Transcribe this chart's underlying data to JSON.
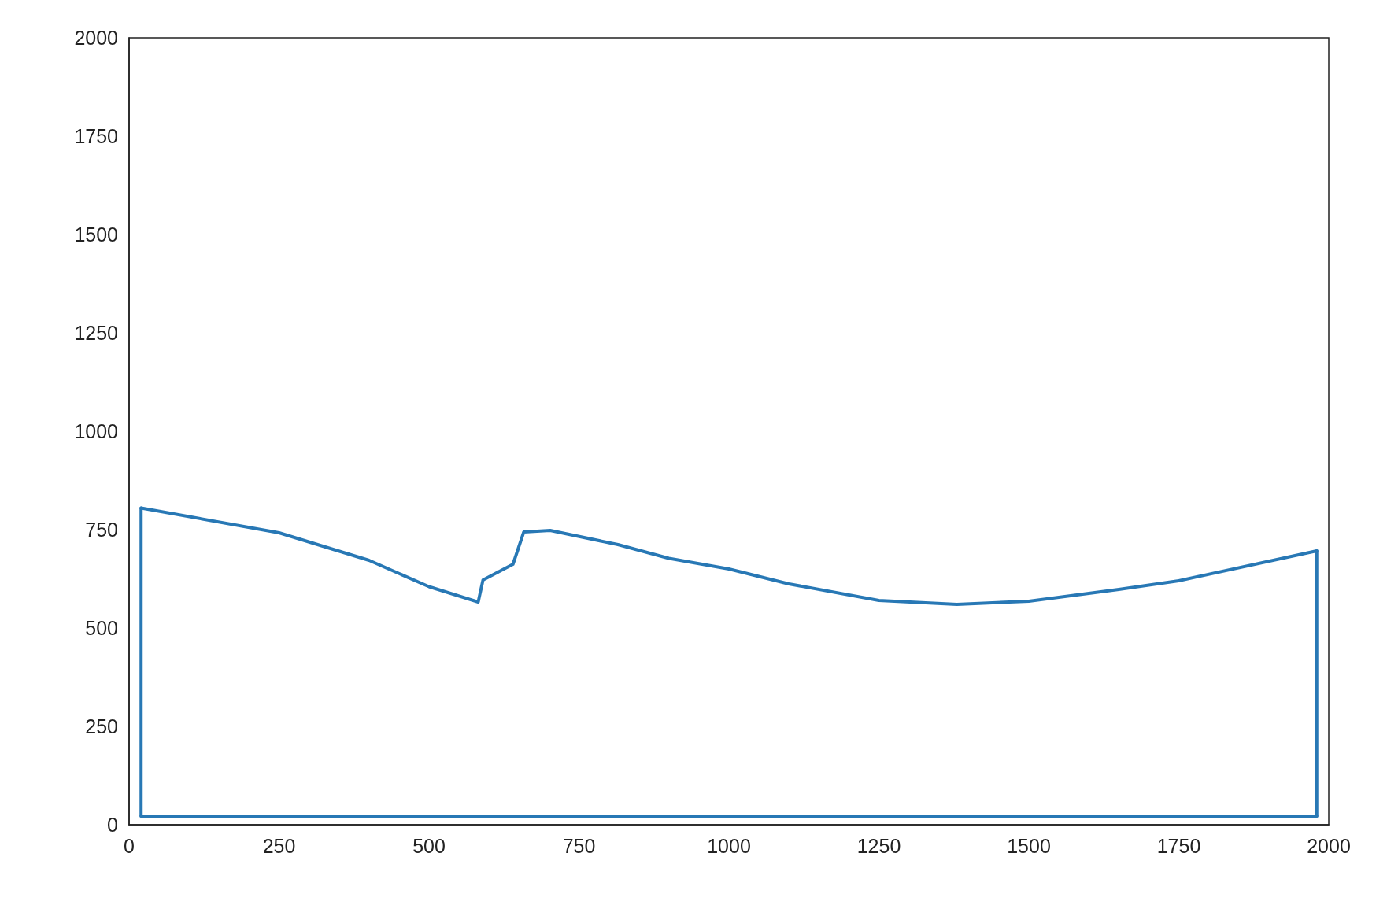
{
  "chart_data": {
    "type": "line",
    "xlim": [
      0,
      2000
    ],
    "ylim": [
      0,
      2000
    ],
    "xticks": [
      0,
      250,
      500,
      750,
      1000,
      1250,
      1500,
      1750,
      2000
    ],
    "yticks": [
      0,
      250,
      500,
      750,
      1000,
      1250,
      1500,
      1750,
      2000
    ],
    "series": [
      {
        "color": "#2878b5",
        "x": [
          20,
          250,
          400,
          500,
          582,
          590,
          640,
          658,
          702,
          815,
          900,
          1000,
          1100,
          1250,
          1380,
          1500,
          1650,
          1750,
          1980
        ],
        "values": [
          805,
          742,
          672,
          605,
          566,
          622,
          662,
          744,
          748,
          712,
          677,
          650,
          612,
          570,
          560,
          568,
          598,
          620,
          696
        ]
      },
      {
        "color": "#2878b5",
        "x": [
          20,
          1980
        ],
        "values": [
          22,
          22
        ]
      },
      {
        "color": "#2878b5",
        "x": [
          20,
          20
        ],
        "values": [
          22,
          805
        ]
      },
      {
        "color": "#2878b5",
        "x": [
          1980,
          1980
        ],
        "values": [
          22,
          696
        ]
      }
    ]
  }
}
